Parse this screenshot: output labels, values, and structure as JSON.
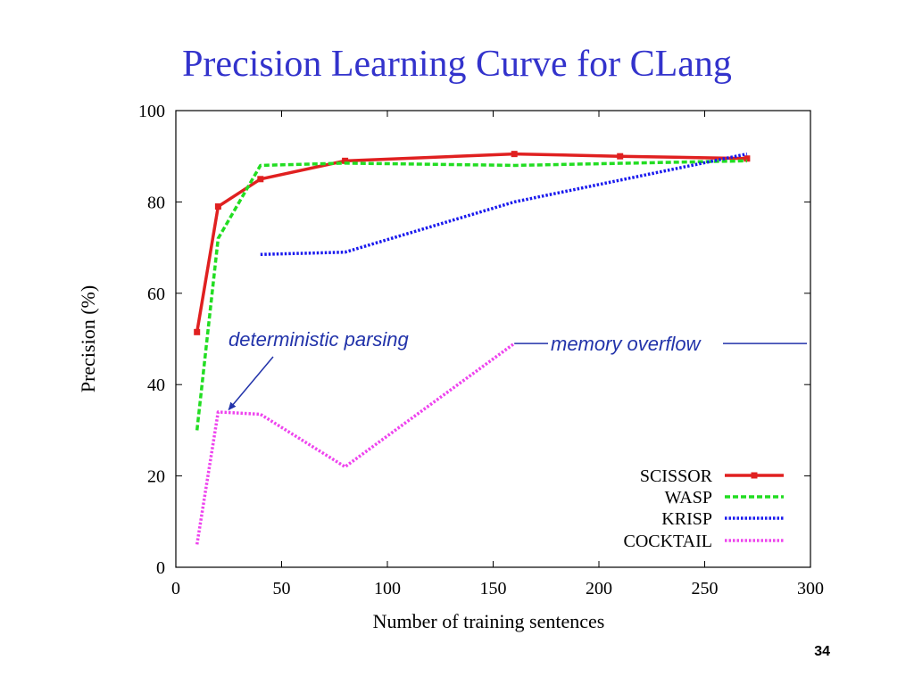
{
  "slide": {
    "title": "Precision Learning Curve for CLang",
    "page_number": "34"
  },
  "chart_data": {
    "type": "line",
    "xlabel": "Number of training sentences",
    "ylabel": "Precision (%)",
    "xlim": [
      0,
      300
    ],
    "ylim": [
      0,
      100
    ],
    "xticks": [
      0,
      50,
      100,
      150,
      200,
      250,
      300
    ],
    "yticks": [
      0,
      20,
      40,
      60,
      80,
      100
    ],
    "grid": false,
    "legend_position": "bottom-right",
    "series": [
      {
        "name": "SCISSOR",
        "color": "#e02020",
        "style": "solid",
        "markers": true,
        "x": [
          10,
          20,
          40,
          80,
          160,
          210,
          270
        ],
        "y": [
          51.5,
          79,
          85,
          89,
          90.5,
          90,
          89.5
        ]
      },
      {
        "name": "WASP",
        "color": "#22dd22",
        "style": "dashed",
        "markers": false,
        "x": [
          10,
          20,
          40,
          80,
          160,
          270
        ],
        "y": [
          30,
          72,
          88,
          88.5,
          88,
          89
        ]
      },
      {
        "name": "KRISP",
        "color": "#1a1aee",
        "style": "dotted",
        "markers": false,
        "x": [
          40,
          80,
          160,
          270
        ],
        "y": [
          68.5,
          69,
          80,
          90.5
        ]
      },
      {
        "name": "COCKTAIL",
        "color": "#ee44ee",
        "style": "dotted",
        "markers": false,
        "x": [
          10,
          20,
          40,
          80,
          160
        ],
        "y": [
          5,
          34,
          33.5,
          22,
          49
        ]
      }
    ],
    "annotations": [
      {
        "text": "deterministic parsing",
        "color": "#2233aa",
        "italic": true,
        "arrow_to": [
          25,
          34.5
        ]
      },
      {
        "text": "memory overflow",
        "color": "#2233aa",
        "italic": true,
        "line_level": 49
      }
    ]
  }
}
